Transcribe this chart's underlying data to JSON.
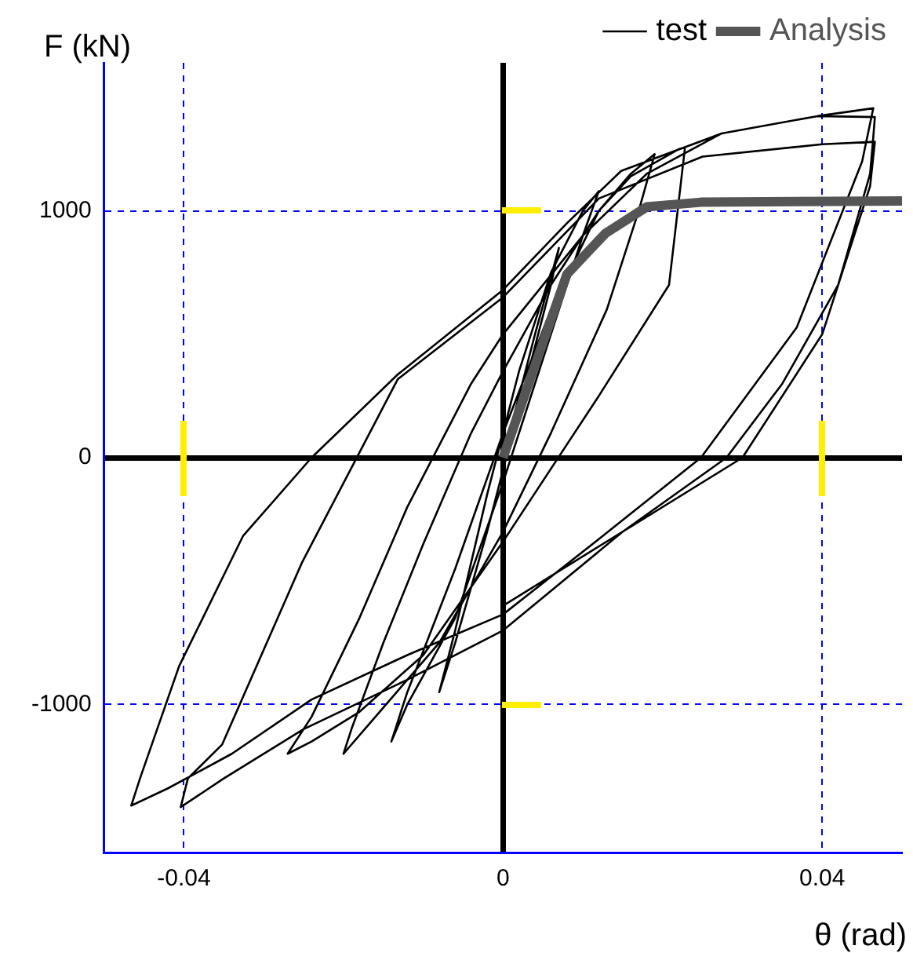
{
  "chart_data": {
    "type": "line",
    "xlabel": "θ (rad)",
    "ylabel": "F (kN)",
    "xlim": [
      -0.05,
      0.05
    ],
    "ylim": [
      -1600,
      1600
    ],
    "xticks": [
      -0.04,
      0,
      0.04
    ],
    "yticks": [
      -1000,
      0,
      1000
    ],
    "grid": true,
    "legend": "top",
    "marker": "none",
    "series": [
      {
        "name": "test",
        "color": "#000000",
        "x": [
          0,
          0.004,
          0.007,
          0.006,
          0.002,
          -0.002,
          -0.006,
          -0.008,
          -0.006,
          -0.002,
          0.002,
          0.006,
          0.01,
          0.012,
          0.01,
          0.006,
          0,
          -0.006,
          -0.012,
          -0.014,
          -0.012,
          -0.006,
          0,
          0.006,
          0.012,
          0.016,
          0.019,
          0.017,
          0.013,
          0.006,
          0,
          -0.008,
          -0.016,
          -0.02,
          -0.019,
          -0.015,
          -0.01,
          -0.004,
          0,
          0.006,
          0.012,
          0.016,
          0.022,
          0.0228,
          0.0208,
          0.012,
          0,
          -0.01,
          -0.018,
          -0.024,
          -0.027,
          -0.024,
          -0.018,
          -0.012,
          -0.004,
          0,
          0.01,
          0.018,
          0.0274,
          0.0394,
          0.0464,
          0.045,
          0.0368,
          0.0248,
          0.012,
          0,
          -0.012,
          -0.024,
          -0.034,
          -0.042,
          -0.0466,
          -0.0455,
          -0.0406,
          -0.0326,
          -0.024,
          -0.0132,
          0,
          0.008,
          0.0148,
          0.0274,
          0.0394,
          0.0466,
          0.0464,
          0.046,
          0.042,
          0.035,
          0.028,
          0.015,
          0,
          -0.012,
          -0.025,
          -0.035,
          -0.0404,
          -0.0395,
          -0.0352,
          -0.0252,
          -0.0132,
          0,
          0.012,
          0.025,
          0.04,
          0.0466,
          0.046,
          0.04,
          0.03,
          0
        ],
        "values": [
          0,
          500,
          850,
          700,
          200,
          -300,
          -750,
          -950,
          -700,
          -150,
          350,
          750,
          1000,
          1080,
          900,
          500,
          -100,
          -650,
          -1000,
          -1150,
          -950,
          -450,
          100,
          600,
          1000,
          1150,
          1230,
          1000,
          600,
          100,
          -300,
          -750,
          -1050,
          -1200,
          -1100,
          -750,
          -350,
          100,
          350,
          700,
          1000,
          1140,
          1250,
          1257,
          700,
          250,
          -340,
          -800,
          -1030,
          -1150,
          -1200,
          -1050,
          -650,
          -200,
          300,
          500,
          900,
          1150,
          1314,
          1384,
          1416,
          1200,
          527,
          0,
          -330,
          -635,
          -800,
          -980,
          -1200,
          -1340,
          -1410,
          -1300,
          -845,
          -318,
          0,
          337,
          680,
          950,
          1162,
          1314,
          1384,
          1380,
          1300,
          1150,
          700,
          300,
          0,
          -300,
          -700,
          -900,
          -1100,
          -1300,
          -1416,
          -1300,
          -1162,
          -425,
          318,
          650,
          1050,
          1220,
          1270,
          1280,
          1100,
          500,
          0,
          -600
        ]
      },
      {
        "name": "Analysis",
        "color": "#555555",
        "x": [
          0,
          0.0034,
          0.008,
          0.0128,
          0.018,
          0.0248,
          0.05
        ],
        "values": [
          0,
          318,
          743,
          908,
          1016,
          1035,
          1040
        ]
      }
    ]
  }
}
